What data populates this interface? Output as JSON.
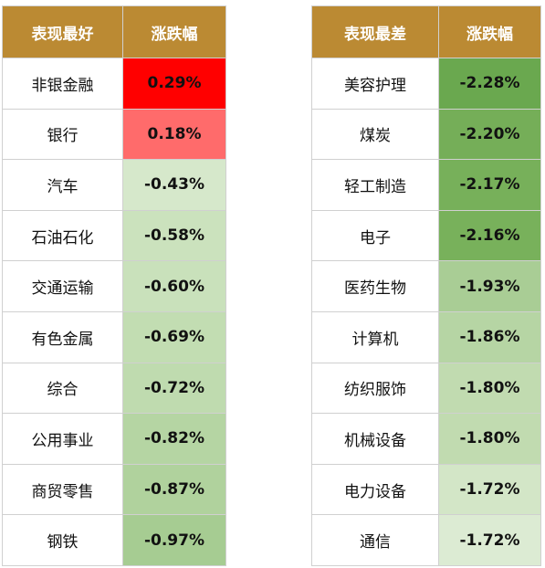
{
  "colors": {
    "header_bg": "#bb8a33",
    "header_text": "#ffffff",
    "gap_bg": "#ffffff"
  },
  "header": {
    "best_label": "表现最好",
    "best_change_label": "涨跌幅",
    "worst_label": "表现最差",
    "worst_change_label": "涨跌幅"
  },
  "rows": [
    {
      "best_name": "非银金融",
      "best_value": "0.29%",
      "best_color": "#ff0000",
      "worst_name": "美容护理",
      "worst_value": "-2.28%",
      "worst_color": "#6aa84f"
    },
    {
      "best_name": "银行",
      "best_value": "0.18%",
      "best_color": "#ff6b6b",
      "worst_name": "煤炭",
      "worst_value": "-2.20%",
      "worst_color": "#75ae58"
    },
    {
      "best_name": "汽车",
      "best_value": "-0.43%",
      "best_color": "#d6e8cb",
      "worst_name": "轻工制造",
      "worst_value": "-2.17%",
      "worst_color": "#77b05a"
    },
    {
      "best_name": "石油石化",
      "best_value": "-0.58%",
      "best_color": "#cbe2bd",
      "worst_name": "电子",
      "worst_value": "-2.16%",
      "worst_color": "#78b15b"
    },
    {
      "best_name": "交通运输",
      "best_value": "-0.60%",
      "best_color": "#c9e1bb",
      "worst_name": "医药生物",
      "worst_value": "-1.93%",
      "worst_color": "#a9cd95"
    },
    {
      "best_name": "有色金属",
      "best_value": "-0.69%",
      "best_color": "#c2ddb2",
      "worst_name": "计算机",
      "worst_value": "-1.86%",
      "worst_color": "#b6d5a4"
    },
    {
      "best_name": "综合",
      "best_value": "-0.72%",
      "best_color": "#bfdbaf",
      "worst_name": "纺织服饰",
      "worst_value": "-1.80%",
      "worst_color": "#c1dbb0"
    },
    {
      "best_name": "公用事业",
      "best_value": "-0.82%",
      "best_color": "#b5d5a3",
      "worst_name": "机械设备",
      "worst_value": "-1.80%",
      "worst_color": "#c1dbb0"
    },
    {
      "best_name": "商贸零售",
      "best_value": "-0.87%",
      "best_color": "#b0d29d",
      "worst_name": "电力设备",
      "worst_value": "-1.72%",
      "worst_color": "#d3e6c7"
    },
    {
      "best_name": "钢铁",
      "best_value": "-0.97%",
      "best_color": "#a6cc92",
      "worst_name": "通信",
      "worst_value": "-1.72%",
      "worst_color": "#dcebd3"
    }
  ]
}
